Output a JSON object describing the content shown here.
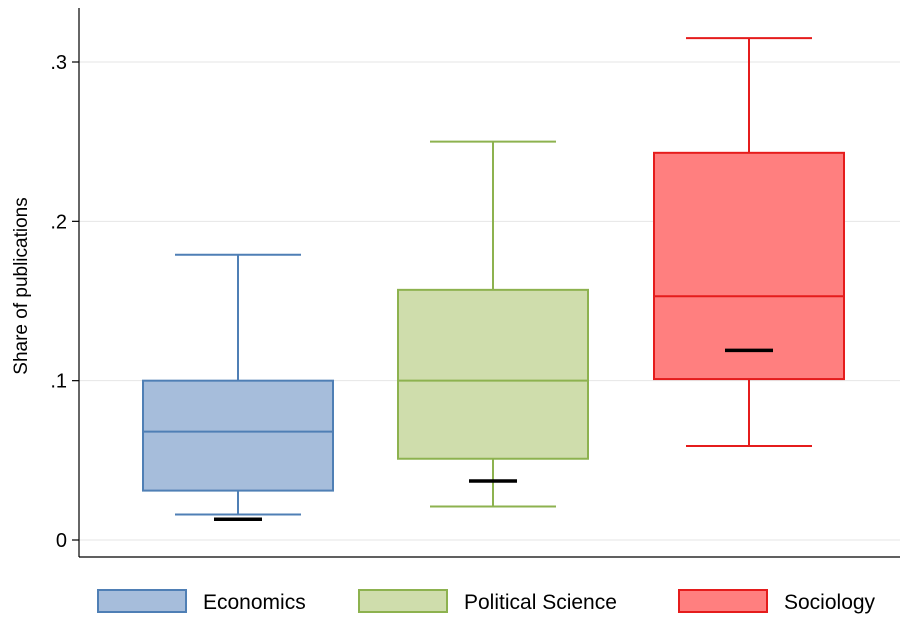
{
  "chart_data": {
    "type": "box",
    "title": "",
    "xlabel": "",
    "ylabel": "Share of publications",
    "ylim": [
      0,
      0.335
    ],
    "yticks": [
      {
        "value": 0,
        "label": "0"
      },
      {
        "value": 0.1,
        "label": ".1"
      },
      {
        "value": 0.2,
        "label": ".2"
      },
      {
        "value": 0.3,
        "label": ".3"
      }
    ],
    "grid": true,
    "legend_position": "bottom",
    "series": [
      {
        "name": "Economics",
        "fill": "#a6bddb",
        "stroke": "#4f7fb5",
        "whisker_low": 0.016,
        "q1": 0.031,
        "median": 0.068,
        "q3": 0.1,
        "whisker_high": 0.179,
        "marker": 0.013
      },
      {
        "name": "Political Science",
        "fill": "#cfddac",
        "stroke": "#8db24f",
        "whisker_low": 0.021,
        "q1": 0.051,
        "median": 0.1,
        "q3": 0.157,
        "whisker_high": 0.25,
        "marker": 0.037
      },
      {
        "name": "Sociology",
        "fill": "#ff7f7f",
        "stroke": "#e51c1c",
        "whisker_low": 0.059,
        "q1": 0.101,
        "median": 0.153,
        "q3": 0.243,
        "whisker_high": 0.315,
        "marker": 0.119
      }
    ]
  }
}
